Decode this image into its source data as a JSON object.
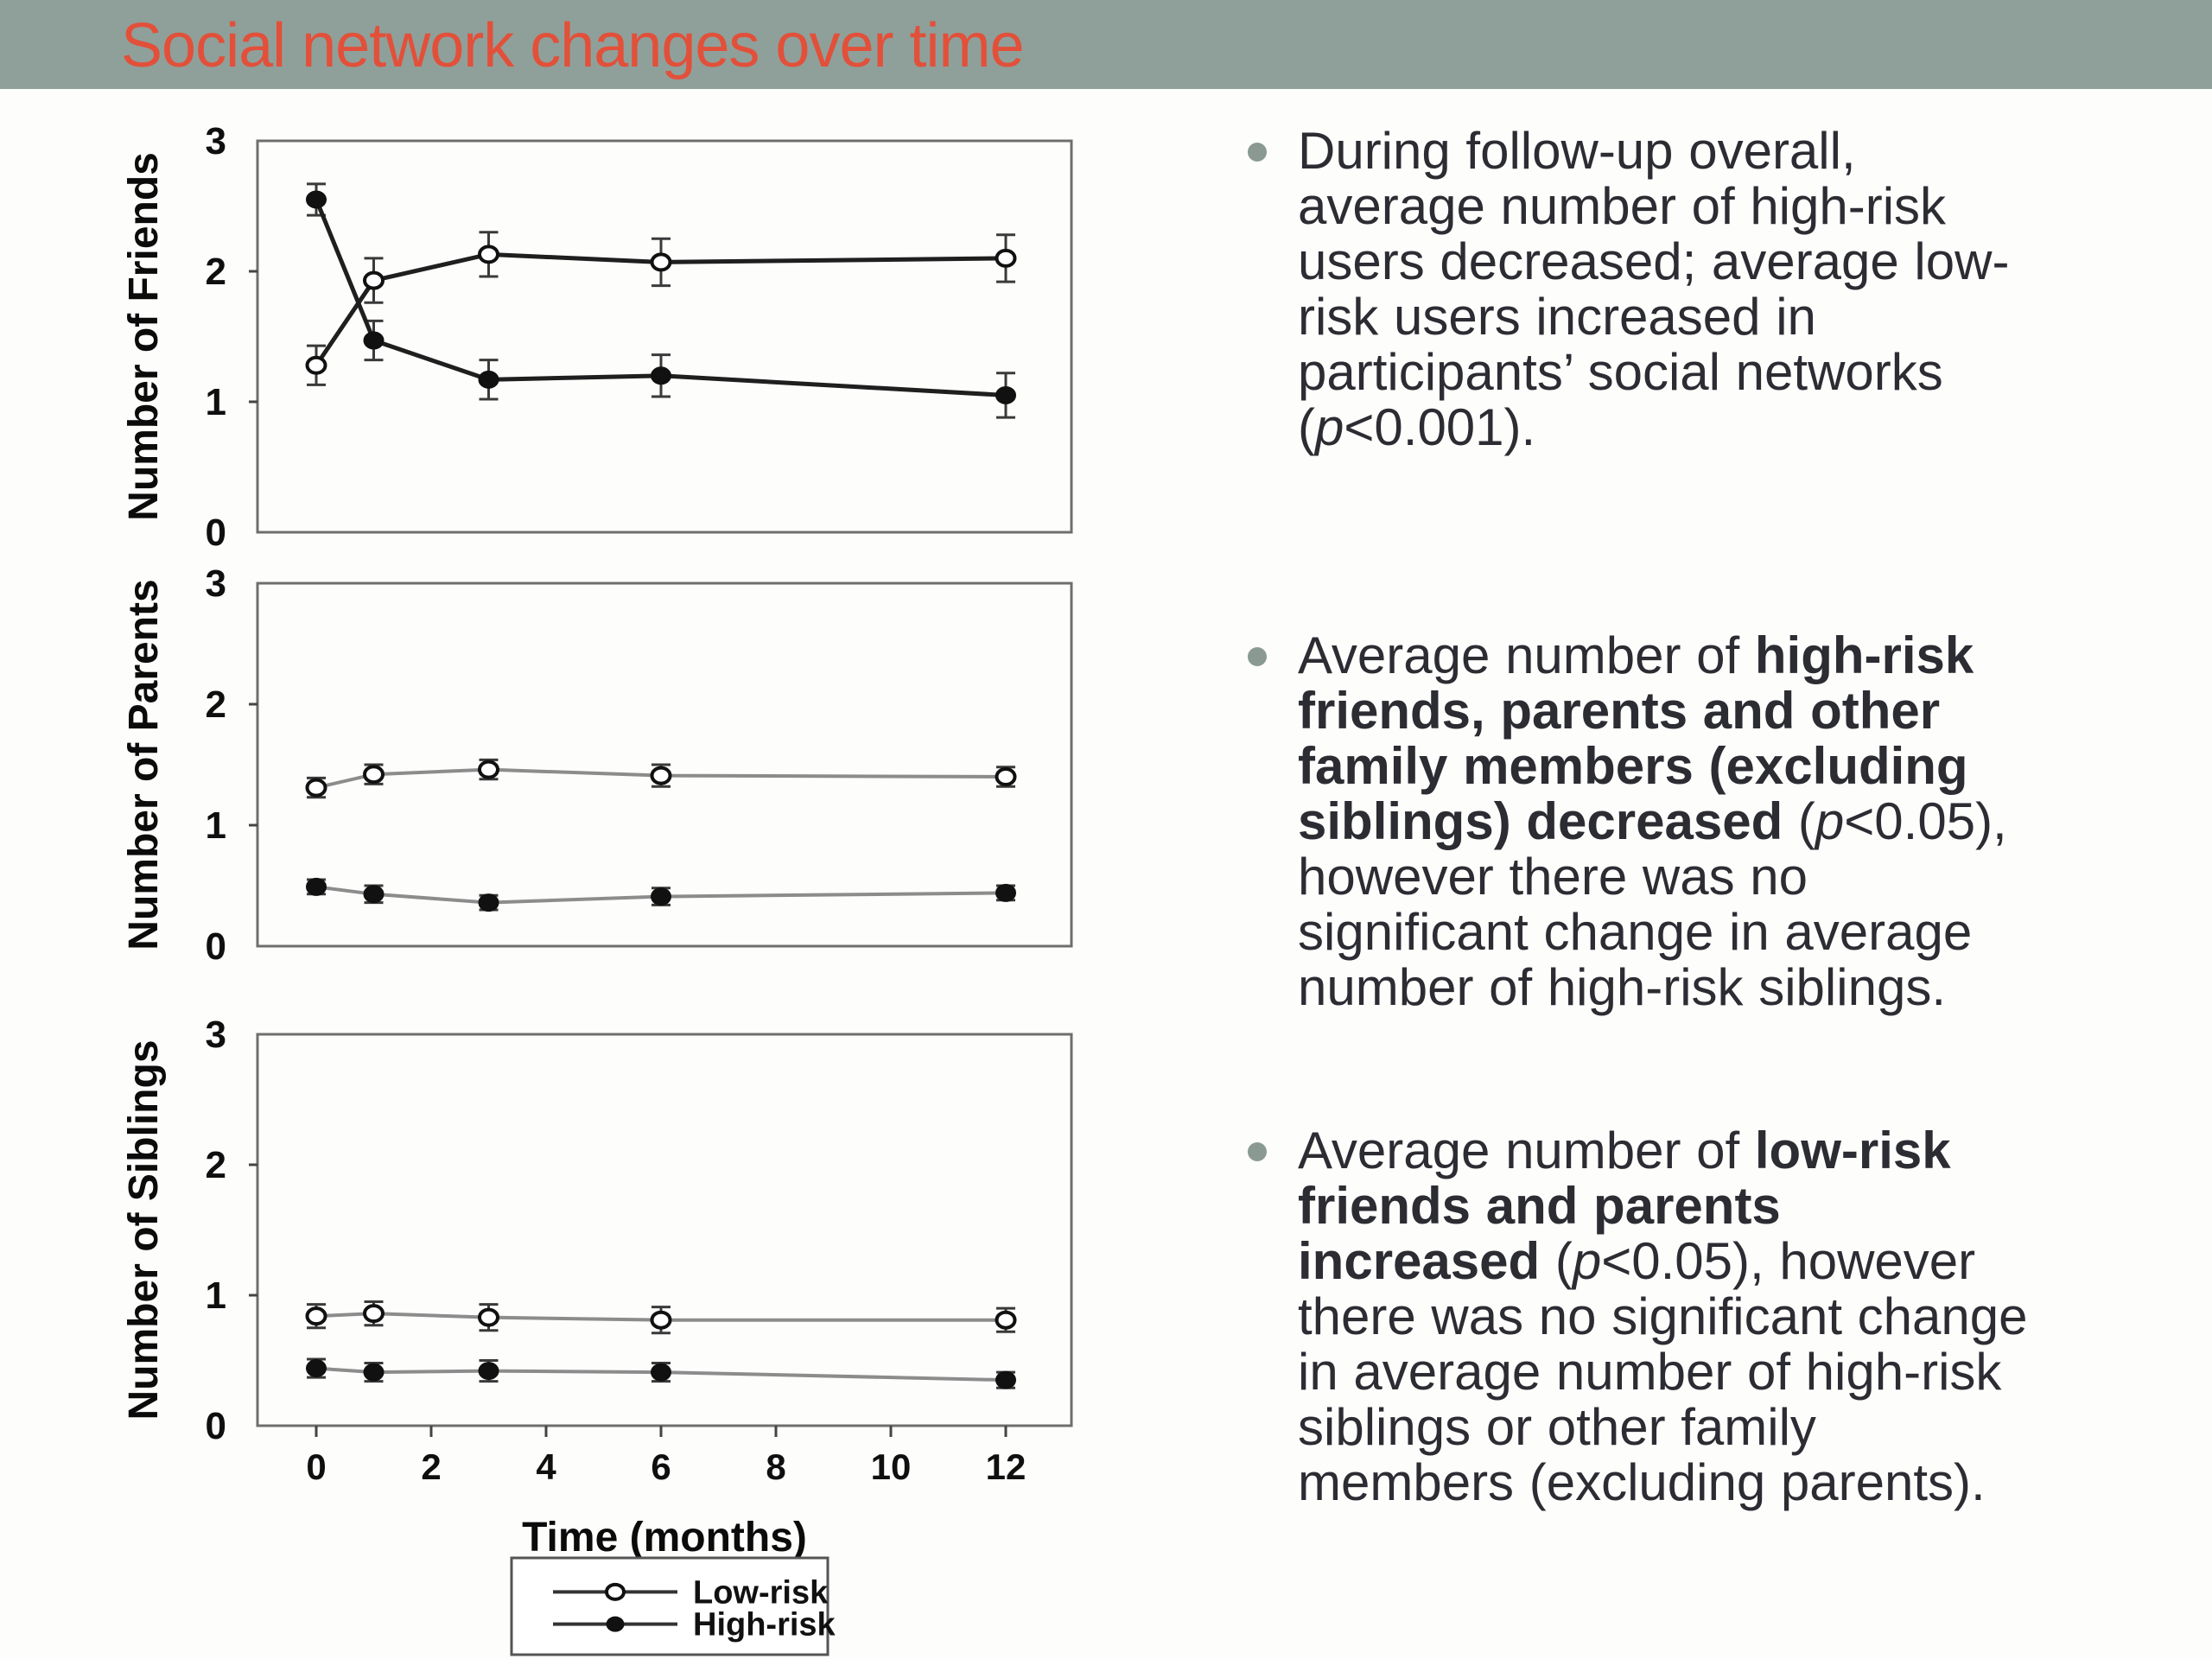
{
  "header": {
    "title": "Social network changes over time"
  },
  "colors": {
    "header_bg": "#8fa09a",
    "title_text": "#e2503a",
    "body_text": "#2c2c33",
    "bullet_dot": "#8a9a93",
    "axis_frame": "#6e6e6e",
    "tick_text": "#0f0f0f",
    "marker": "#111111",
    "chart1_line": "#1f1f1f",
    "chart23_line": "#8c8c8c"
  },
  "chart_data": [
    {
      "type": "line",
      "title": "",
      "xlabel": "",
      "ylabel": "Number of Friends",
      "x": [
        0,
        1,
        3,
        6,
        12
      ],
      "xlim": [
        -1,
        13.2
      ],
      "ylim": [
        0,
        3
      ],
      "yticks": [
        0,
        1,
        2,
        3
      ],
      "grid": false,
      "line_color": "#1f1f1f",
      "line_width": 5,
      "series": [
        {
          "name": "Low-risk",
          "marker": "open-circle",
          "values": [
            1.28,
            1.93,
            2.13,
            2.07,
            2.1
          ],
          "errors": [
            0.15,
            0.17,
            0.17,
            0.18,
            0.18
          ]
        },
        {
          "name": "High-risk",
          "marker": "filled-circle",
          "values": [
            2.55,
            1.47,
            1.17,
            1.2,
            1.05
          ],
          "errors": [
            0.12,
            0.15,
            0.15,
            0.16,
            0.17
          ]
        }
      ]
    },
    {
      "type": "line",
      "title": "",
      "xlabel": "",
      "ylabel": "Number of Parents",
      "x": [
        0,
        1,
        3,
        6,
        12
      ],
      "xlim": [
        -1,
        13.2
      ],
      "ylim": [
        0,
        3
      ],
      "yticks": [
        0,
        1,
        2,
        3
      ],
      "grid": false,
      "line_color": "#8c8c8c",
      "line_width": 4,
      "series": [
        {
          "name": "Low-risk",
          "marker": "open-circle",
          "values": [
            1.31,
            1.42,
            1.46,
            1.41,
            1.4
          ],
          "errors": [
            0.08,
            0.08,
            0.08,
            0.09,
            0.08
          ]
        },
        {
          "name": "High-risk",
          "marker": "filled-circle",
          "values": [
            0.49,
            0.43,
            0.36,
            0.41,
            0.44
          ],
          "errors": [
            0.06,
            0.07,
            0.06,
            0.07,
            0.06
          ]
        }
      ]
    },
    {
      "type": "line",
      "title": "",
      "xlabel": "Time (months)",
      "ylabel": "Number of Siblings",
      "x": [
        0,
        1,
        3,
        6,
        12
      ],
      "xticks": [
        0,
        2,
        4,
        6,
        8,
        10,
        12
      ],
      "xlim": [
        -1,
        13.2
      ],
      "ylim": [
        0,
        3
      ],
      "yticks": [
        0,
        1,
        2,
        3
      ],
      "grid": false,
      "line_color": "#8c8c8c",
      "line_width": 4,
      "series": [
        {
          "name": "Low-risk",
          "marker": "open-circle",
          "values": [
            0.84,
            0.86,
            0.83,
            0.81,
            0.81
          ],
          "errors": [
            0.09,
            0.09,
            0.1,
            0.1,
            0.09
          ]
        },
        {
          "name": "High-risk",
          "marker": "filled-circle",
          "values": [
            0.44,
            0.41,
            0.42,
            0.41,
            0.35
          ],
          "errors": [
            0.07,
            0.07,
            0.08,
            0.07,
            0.06
          ]
        }
      ]
    }
  ],
  "legend": {
    "position": "bottom",
    "items": [
      {
        "label": "Low-risk",
        "marker": "open-circle"
      },
      {
        "label": "High-risk",
        "marker": "filled-circle"
      }
    ]
  },
  "bullets": [
    {
      "segments": [
        {
          "text": "During follow-up overall,\naverage number of high-risk\nusers decreased; average low-\nrisk users increased in\nparticipants’ social networks\n("
        },
        {
          "text": "p",
          "italic": true
        },
        {
          "text": "<0.001)."
        }
      ]
    },
    {
      "segments": [
        {
          "text": "Average number of "
        },
        {
          "text": "high-risk\nfriends, parents and other\nfamily members (excluding\nsiblings) decreased",
          "bold": true
        },
        {
          "text": " ("
        },
        {
          "text": "p",
          "italic": true
        },
        {
          "text": "<0.05),\nhowever there was no\nsignificant change in average\nnumber of high-risk siblings."
        }
      ]
    },
    {
      "segments": [
        {
          "text": "Average number of "
        },
        {
          "text": "low-risk\nfriends and parents\nincreased",
          "bold": true
        },
        {
          "text": " ("
        },
        {
          "text": "p",
          "italic": true
        },
        {
          "text": "<0.05), however\nthere was no significant change\nin average number of high-risk\nsiblings or other family\nmembers (excluding parents)."
        }
      ]
    }
  ]
}
